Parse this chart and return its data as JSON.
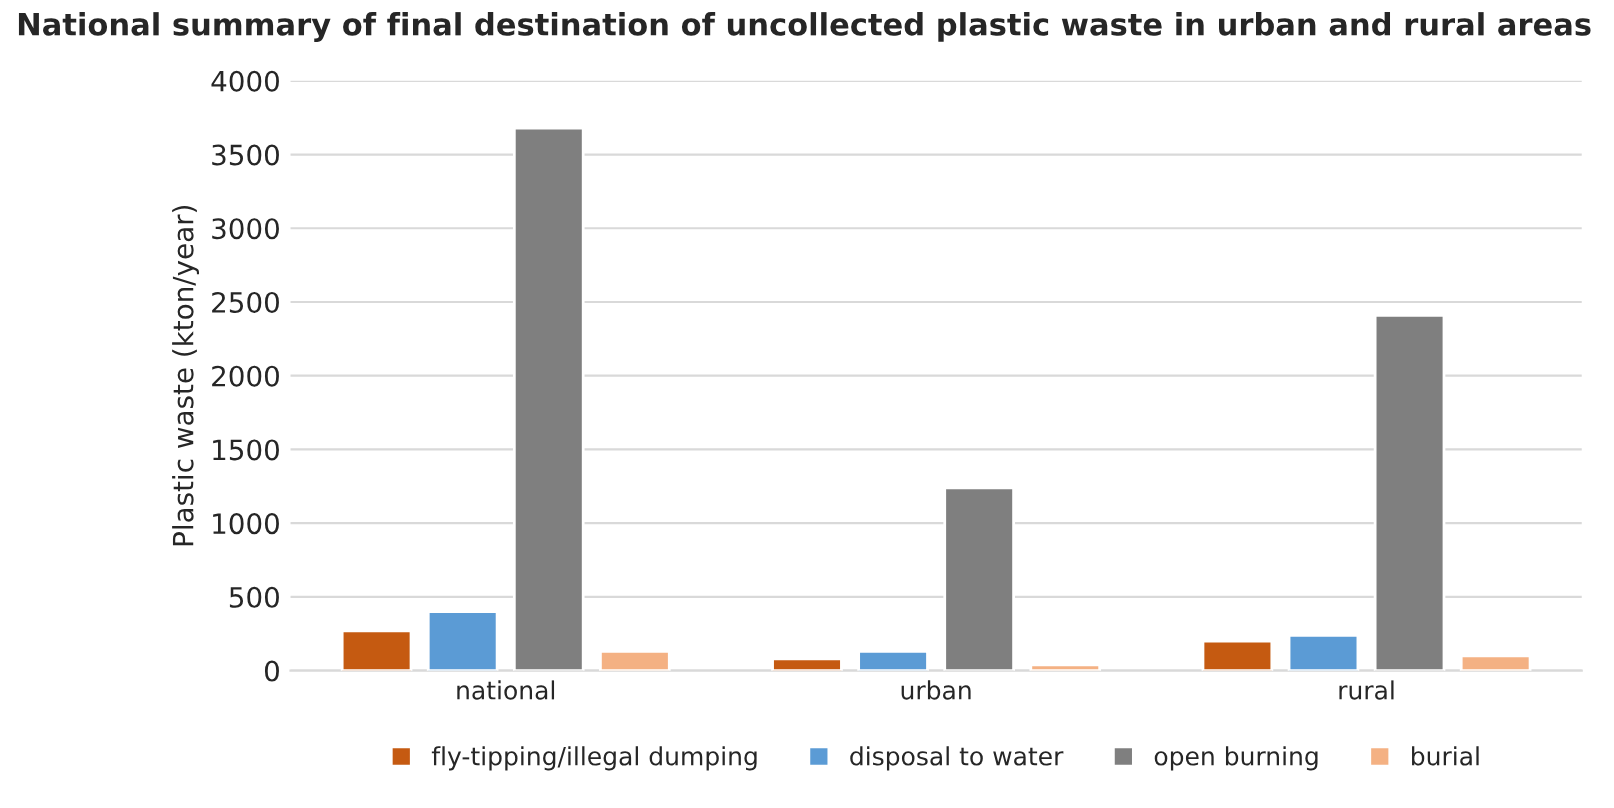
{
  "chart_data": {
    "type": "bar",
    "title": "National summary of final destination of uncollected plastic waste in urban and rural areas",
    "ylabel": "Plastic waste (kton/year)",
    "categories": [
      "national",
      "urban",
      "rural"
    ],
    "series": [
      {
        "name": "fly-tipping/illegal dumping",
        "color": "#c55a11",
        "values": [
          270,
          80,
          200
        ]
      },
      {
        "name": "disposal to water",
        "color": "#5b9bd5",
        "values": [
          400,
          130,
          240
        ]
      },
      {
        "name": "open burning",
        "color": "#7f7f7f",
        "values": [
          3680,
          1240,
          2410
        ]
      },
      {
        "name": "burial",
        "color": "#f4b183",
        "values": [
          130,
          40,
          100
        ]
      }
    ],
    "ylim": [
      0,
      4000
    ],
    "yticks": [
      0,
      500,
      1000,
      1500,
      2000,
      2500,
      3000,
      3500,
      4000
    ],
    "grid": "y",
    "legend": "bottom"
  }
}
